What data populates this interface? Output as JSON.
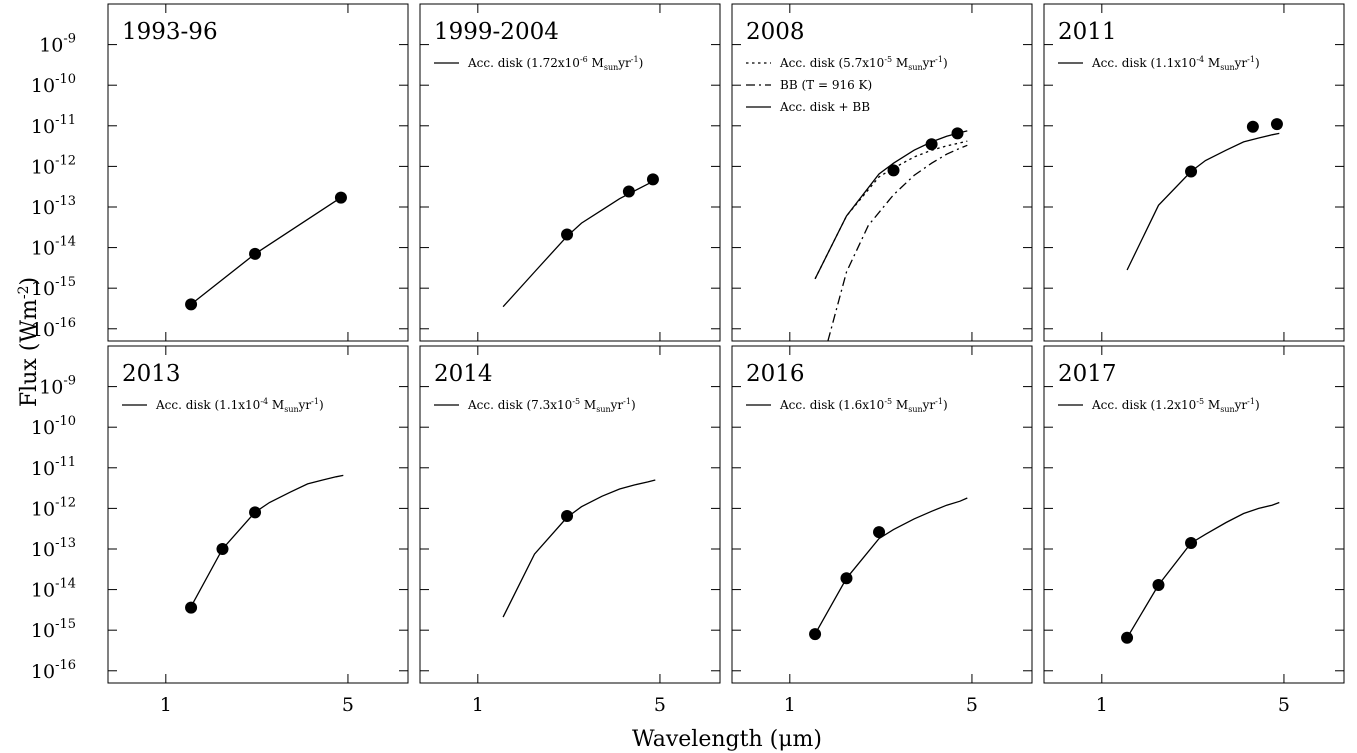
{
  "figure": {
    "ylabel": "Flux (Wm",
    "ylabel_sup": "-2",
    "ylabel_close": ")",
    "xlabel": "Wavelength (μm)"
  },
  "chart_data": {
    "type": "line",
    "xscale": "log",
    "yscale": "log",
    "xlim": [
      0.6,
      8.5
    ],
    "ylim": [
      5e-17,
      1e-08
    ],
    "x_ticks": [
      {
        "value": 1,
        "label": "1"
      },
      {
        "value": 5,
        "label": "5"
      }
    ],
    "y_ticks": [
      {
        "value": 1e-09,
        "base": "10",
        "exp": "-9"
      },
      {
        "value": 1e-10,
        "base": "10",
        "exp": "-10"
      },
      {
        "value": 1e-11,
        "base": "10",
        "exp": "-11"
      },
      {
        "value": 1e-12,
        "base": "10",
        "exp": "-12"
      },
      {
        "value": 1e-13,
        "base": "10",
        "exp": "-13"
      },
      {
        "value": 1e-14,
        "base": "10",
        "exp": "-14"
      },
      {
        "value": 1e-15,
        "base": "10",
        "exp": "-15"
      },
      {
        "value": 1e-16,
        "base": "10",
        "exp": "-16"
      }
    ],
    "panels": [
      {
        "title": "1993-96",
        "legend": [],
        "series": [
          {
            "style": "solid",
            "x": [
              1.25,
              2.2,
              4.7
            ],
            "y": [
              4e-16,
              7e-15,
              1.7e-13
            ]
          }
        ],
        "points": {
          "x": [
            1.25,
            2.2,
            4.7
          ],
          "y": [
            4e-16,
            7e-15,
            1.7e-13
          ]
        }
      },
      {
        "title": "1999-2004",
        "legend": [
          {
            "style": "solid",
            "pre": "Acc. disk (1.72x10",
            "sup": "-6",
            "mid": " M",
            "sub": "sun",
            "post": "yr",
            "sup2": "-1",
            "end": ")"
          }
        ],
        "series": [
          {
            "style": "solid",
            "x": [
              1.25,
              1.65,
              2.2,
              2.5,
              3.0,
              3.5,
              4.0,
              4.5,
              4.8
            ],
            "y": [
              3.5e-16,
              2.5e-15,
              1.9e-14,
              4e-14,
              8.5e-14,
              1.6e-13,
              2.5e-13,
              3.7e-13,
              4.5e-13
            ]
          }
        ],
        "points": {
          "x": [
            2.2,
            3.8,
            4.7
          ],
          "y": [
            2.1e-14,
            2.4e-13,
            4.8e-13
          ]
        }
      },
      {
        "title": "2008",
        "legend": [
          {
            "style": "dotted",
            "pre": "Acc. disk (5.7x10",
            "sup": "-5",
            "mid": " M",
            "sub": "sun",
            "post": "yr",
            "sup2": "-1",
            "end": ")"
          },
          {
            "style": "dashdot",
            "pre": "BB (T = 916 K)",
            "sup": "",
            "mid": "",
            "sub": "",
            "post": "",
            "sup2": "",
            "end": ""
          },
          {
            "style": "solid",
            "pre": "Acc. disk + BB",
            "sup": "",
            "mid": "",
            "sub": "",
            "post": "",
            "sup2": "",
            "end": ""
          }
        ],
        "series": [
          {
            "style": "solid",
            "x": [
              1.25,
              1.65,
              2.2,
              2.5,
              3.0,
              3.5,
              4.0,
              4.5,
              4.8
            ],
            "y": [
              1.7e-15,
              6e-14,
              6.5e-13,
              1.2e-12,
              2.5e-12,
              4e-12,
              5.5e-12,
              6.8e-12,
              7.5e-12
            ]
          },
          {
            "style": "dotted",
            "x": [
              1.25,
              1.65,
              2.2,
              2.5,
              3.0,
              3.5,
              4.0,
              4.5,
              4.8
            ],
            "y": [
              1.7e-15,
              6e-14,
              5.5e-13,
              9e-13,
              1.7e-12,
              2.5e-12,
              3.2e-12,
              3.8e-12,
              4.2e-12
            ]
          },
          {
            "style": "dashdot",
            "x": [
              1.4,
              1.65,
              2.0,
              2.5,
              3.0,
              3.5,
              4.0,
              4.5,
              4.8
            ],
            "y": [
              5e-17,
              2.5e-15,
              3.5e-14,
              2e-13,
              6e-13,
              1.2e-12,
              2e-12,
              2.8e-12,
              3.3e-12
            ]
          }
        ],
        "points": {
          "x": [
            2.5,
            3.5,
            4.4
          ],
          "y": [
            8e-13,
            3.5e-12,
            6.5e-12
          ]
        }
      },
      {
        "title": "2011",
        "legend": [
          {
            "style": "solid",
            "pre": "Acc. disk (1.1x10",
            "sup": "-4",
            "mid": " M",
            "sub": "sun",
            "post": "yr",
            "sup2": "-1",
            "end": ")"
          }
        ],
        "series": [
          {
            "style": "solid",
            "x": [
              1.25,
              1.65,
              2.2,
              2.5,
              3.0,
              3.5,
              4.0,
              4.5,
              4.8
            ],
            "y": [
              2.8e-15,
              1.1e-13,
              7.5e-13,
              1.4e-12,
              2.5e-12,
              4e-12,
              5e-12,
              6e-12,
              6.5e-12
            ]
          }
        ],
        "points": {
          "x": [
            2.2,
            3.8,
            4.7
          ],
          "y": [
            7.5e-13,
            9.5e-12,
            1.1e-11
          ]
        }
      },
      {
        "title": "2013",
        "legend": [
          {
            "style": "solid",
            "pre": "Acc. disk (1.1x10",
            "sup": "-4",
            "mid": " M",
            "sub": "sun",
            "post": "yr",
            "sup2": "-1",
            "end": ")"
          }
        ],
        "series": [
          {
            "style": "solid",
            "x": [
              1.25,
              1.65,
              2.2,
              2.5,
              3.0,
              3.5,
              4.0,
              4.5,
              4.8
            ],
            "y": [
              3.8e-15,
              1e-13,
              8e-13,
              1.4e-12,
              2.5e-12,
              4e-12,
              5e-12,
              6e-12,
              6.5e-12
            ]
          }
        ],
        "points": {
          "x": [
            1.25,
            1.65,
            2.2
          ],
          "y": [
            3.6e-15,
            1e-13,
            8e-13
          ]
        }
      },
      {
        "title": "2014",
        "legend": [
          {
            "style": "solid",
            "pre": "Acc. disk (7.3x10",
            "sup": "-5",
            "mid": " M",
            "sub": "sun",
            "post": "yr",
            "sup2": "-1",
            "end": ")"
          }
        ],
        "series": [
          {
            "style": "solid",
            "x": [
              1.25,
              1.65,
              2.2,
              2.5,
              3.0,
              3.5,
              4.0,
              4.5,
              4.8
            ],
            "y": [
              2.1e-15,
              7.5e-14,
              6e-13,
              1.1e-12,
              2e-12,
              3e-12,
              3.8e-12,
              4.5e-12,
              5e-12
            ]
          }
        ],
        "points": {
          "x": [
            2.2
          ],
          "y": [
            6.5e-13
          ]
        }
      },
      {
        "title": "2016",
        "legend": [
          {
            "style": "solid",
            "pre": "Acc. disk (1.6x10",
            "sup": "-5",
            "mid": " M",
            "sub": "sun",
            "post": "yr",
            "sup2": "-1",
            "end": ")"
          }
        ],
        "series": [
          {
            "style": "solid",
            "x": [
              1.25,
              1.65,
              2.2,
              2.5,
              3.0,
              3.5,
              4.0,
              4.5,
              4.8
            ],
            "y": [
              8e-16,
              1.9e-14,
              1.8e-13,
              3e-13,
              5.5e-13,
              8.5e-13,
              1.2e-12,
              1.5e-12,
              1.8e-12
            ]
          }
        ],
        "points": {
          "x": [
            1.25,
            1.65,
            2.2
          ],
          "y": [
            8e-16,
            1.9e-14,
            2.6e-13
          ]
        }
      },
      {
        "title": "2017",
        "legend": [
          {
            "style": "solid",
            "pre": "Acc. disk (1.2x10",
            "sup": "-5",
            "mid": " M",
            "sub": "sun",
            "post": "yr",
            "sup2": "-1",
            "end": ")"
          }
        ],
        "series": [
          {
            "style": "solid",
            "x": [
              1.25,
              1.65,
              2.2,
              2.5,
              3.0,
              3.5,
              4.0,
              4.5,
              4.8
            ],
            "y": [
              6.5e-16,
              1.3e-14,
              1.4e-13,
              2.3e-13,
              4.5e-13,
              7.5e-13,
              1e-12,
              1.2e-12,
              1.4e-12
            ]
          }
        ],
        "points": {
          "x": [
            1.25,
            1.65,
            2.2
          ],
          "y": [
            6.5e-16,
            1.3e-14,
            1.4e-13
          ]
        }
      }
    ]
  }
}
